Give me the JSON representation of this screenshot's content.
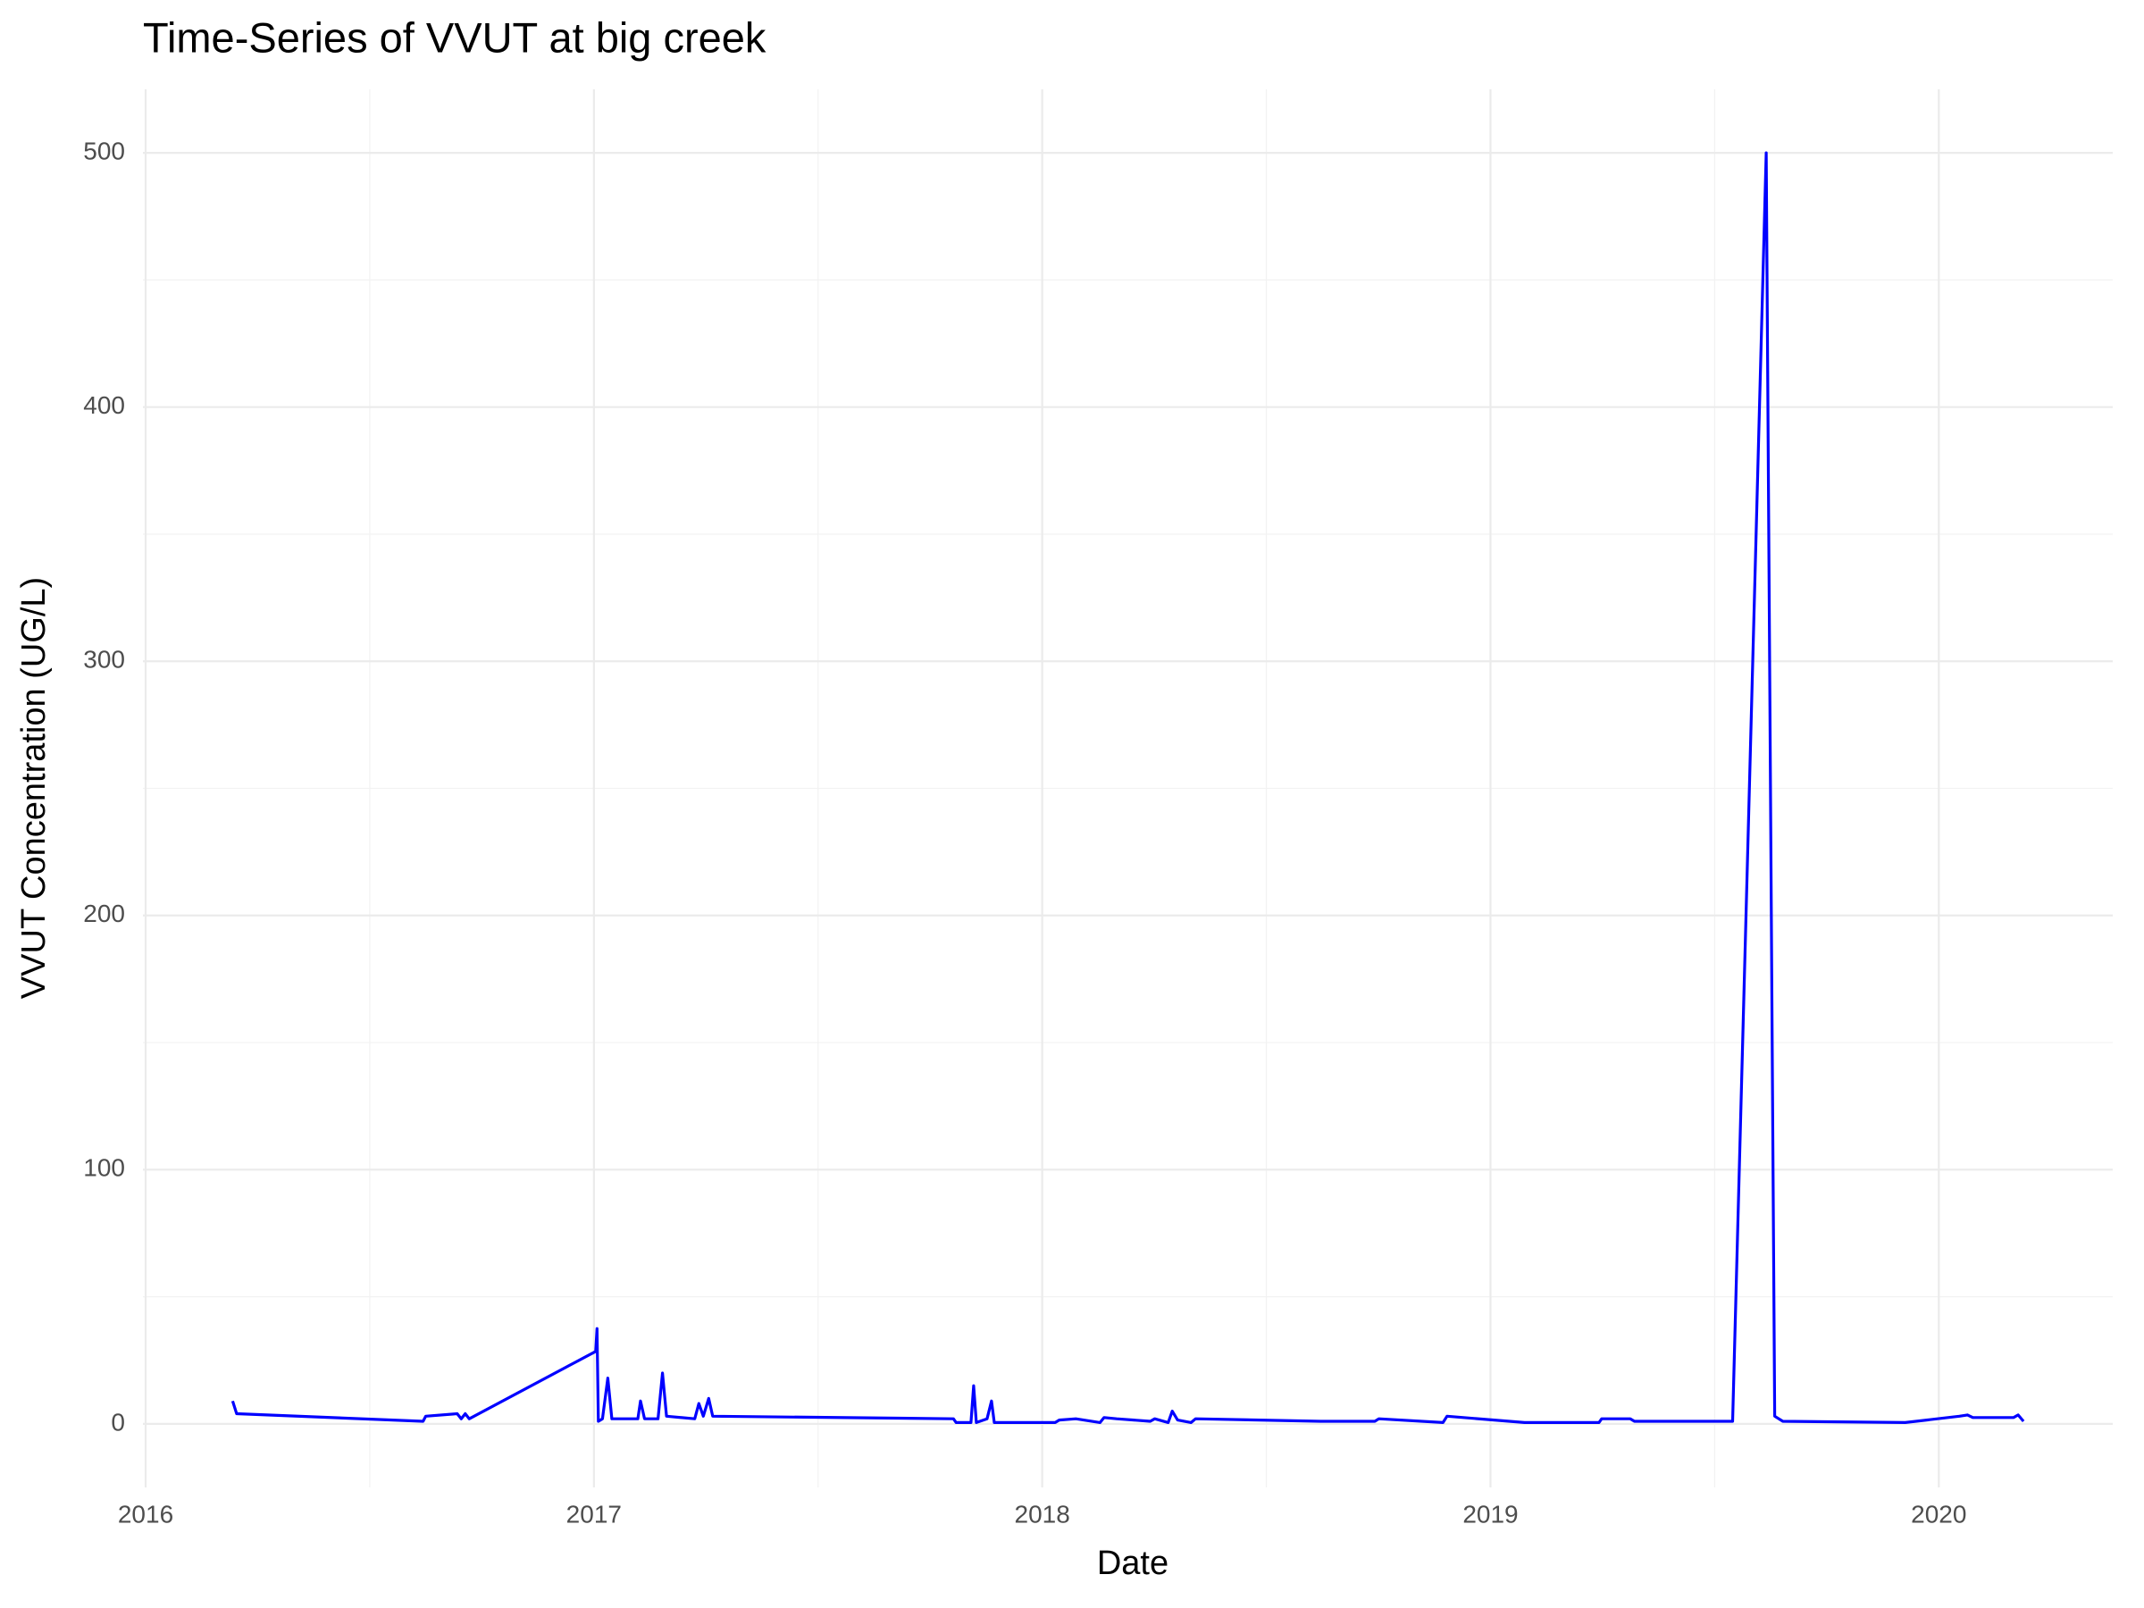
{
  "chart_data": {
    "type": "line",
    "title": "Time-Series of VVUT at big creek",
    "xlabel": "Date",
    "ylabel": "VVUT Concentration (UG/L)",
    "x": [
      2016.194,
      2016.203,
      2016.619,
      2016.625,
      2016.695,
      2016.704,
      2016.713,
      2016.722,
      2017.004,
      2017.007,
      2017.01,
      2017.019,
      2017.031,
      2017.04,
      2017.098,
      2017.104,
      2017.113,
      2017.143,
      2017.153,
      2017.162,
      2017.225,
      2017.234,
      2017.244,
      2017.256,
      2017.265,
      2017.802,
      2017.808,
      2017.841,
      2017.847,
      2017.853,
      2017.877,
      2017.887,
      2017.893,
      2017.984,
      2018.029,
      2018.038,
      2018.075,
      2018.129,
      2018.138,
      2018.166,
      2018.241,
      2018.251,
      2018.281,
      2018.29,
      2018.302,
      2018.332,
      2018.342,
      2018.621,
      2018.742,
      2018.751,
      2018.894,
      2018.903,
      2019.076,
      2019.242,
      2019.248,
      2019.312,
      2019.321,
      2019.54,
      2019.615,
      2019.634,
      2019.652,
      2019.925,
      2020.046,
      2020.064,
      2020.076,
      2020.167,
      2020.177,
      2020.189
    ],
    "series": [
      {
        "name": "VVUT",
        "color": "#0000ff",
        "values": [
          9,
          4,
          1,
          3,
          4,
          2,
          4,
          2,
          28.5,
          37.5,
          1,
          2,
          18,
          2,
          2,
          9,
          2,
          2,
          20,
          3,
          2,
          8,
          3,
          10,
          3,
          2,
          0.5,
          0.5,
          15,
          0.5,
          2,
          9,
          0.5,
          0.5,
          0.5,
          1.5,
          2,
          0.5,
          2.5,
          2,
          1,
          2,
          0.5,
          5,
          1.5,
          0.5,
          2,
          1,
          1,
          2,
          0.5,
          3,
          0.5,
          0.5,
          2,
          2,
          1,
          1,
          500,
          3,
          1,
          0.5,
          3,
          3.5,
          2.5,
          2.5,
          3.5,
          1
        ]
      }
    ],
    "xlim": [
      2015.994,
      2020.388
    ],
    "xticks": [
      2016,
      2017,
      2018,
      2019,
      2020
    ],
    "ylim": [
      -25,
      525
    ],
    "yticks": [
      0,
      100,
      200,
      300,
      400,
      500
    ],
    "grid": true
  }
}
